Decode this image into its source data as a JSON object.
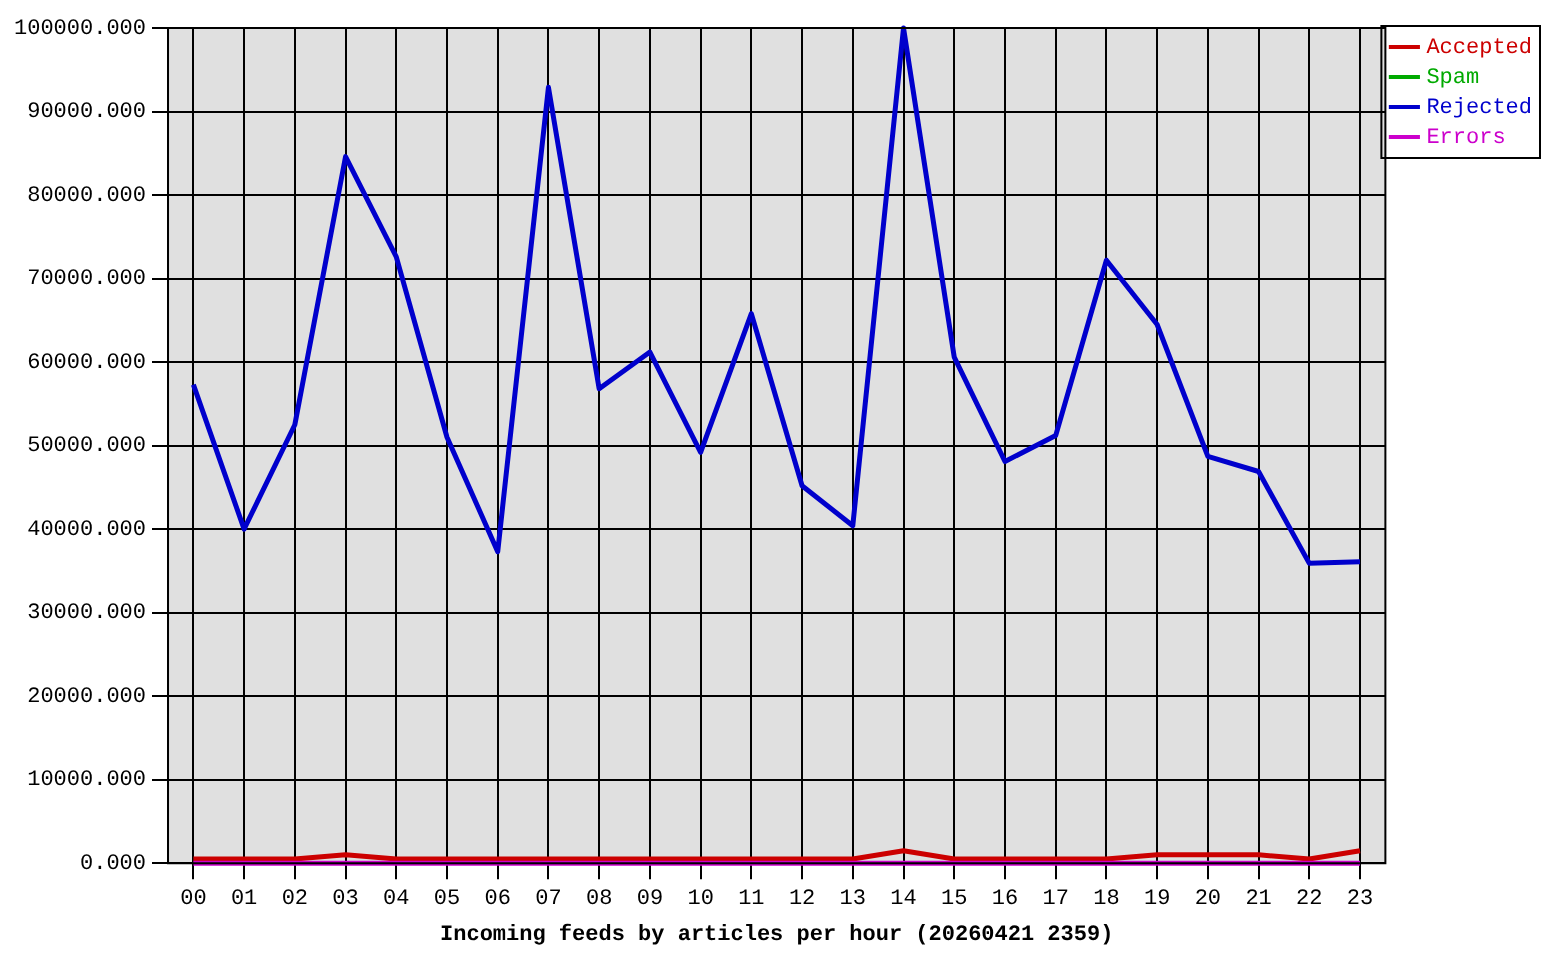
{
  "chart_data": {
    "type": "line",
    "xlabel": "Incoming feeds by articles per hour (20260421 2359)",
    "categories": [
      "00",
      "01",
      "02",
      "03",
      "04",
      "05",
      "06",
      "07",
      "08",
      "09",
      "10",
      "11",
      "12",
      "13",
      "14",
      "15",
      "16",
      "17",
      "18",
      "19",
      "20",
      "21",
      "22",
      "23"
    ],
    "series": [
      {
        "name": "Accepted",
        "color": "#cc0000",
        "values": [
          500,
          500,
          500,
          1000,
          500,
          500,
          500,
          500,
          500,
          500,
          500,
          500,
          500,
          500,
          1500,
          500,
          500,
          500,
          500,
          1000,
          1000,
          1000,
          500,
          1500
        ]
      },
      {
        "name": "Spam",
        "color": "#00aa00",
        "values": [
          null,
          null,
          null,
          null,
          null,
          null,
          null,
          null,
          null,
          null,
          null,
          null,
          null,
          null,
          null,
          null,
          null,
          null,
          null,
          null,
          null,
          null,
          null,
          null
        ]
      },
      {
        "name": "Rejected",
        "color": "#0000cc",
        "values": [
          57300,
          40000,
          52500,
          84600,
          72600,
          51000,
          37300,
          92900,
          56800,
          61200,
          49200,
          65800,
          45200,
          40400,
          100000,
          60600,
          48100,
          51200,
          72200,
          64500,
          48700,
          46900,
          35900,
          36100
        ]
      },
      {
        "name": "Errors",
        "color": "#cc00cc",
        "values": [
          0,
          0,
          0,
          0,
          0,
          0,
          0,
          0,
          0,
          0,
          0,
          0,
          0,
          0,
          0,
          0,
          0,
          0,
          0,
          0,
          0,
          0,
          0,
          0
        ]
      }
    ],
    "ylim": [
      0,
      100000
    ],
    "yticks": [
      {
        "value": 0,
        "label": "0.000"
      },
      {
        "value": 10000,
        "label": "10000.000"
      },
      {
        "value": 20000,
        "label": "20000.000"
      },
      {
        "value": 30000,
        "label": "30000.000"
      },
      {
        "value": 40000,
        "label": "40000.000"
      },
      {
        "value": 50000,
        "label": "50000.000"
      },
      {
        "value": 60000,
        "label": "60000.000"
      },
      {
        "value": 70000,
        "label": "70000.000"
      },
      {
        "value": 80000,
        "label": "80000.000"
      },
      {
        "value": 90000,
        "label": "90000.000"
      },
      {
        "value": 100000,
        "label": "100000.000"
      }
    ],
    "grid": true,
    "legend": "top right",
    "marker": "none",
    "line_style": "solid"
  }
}
